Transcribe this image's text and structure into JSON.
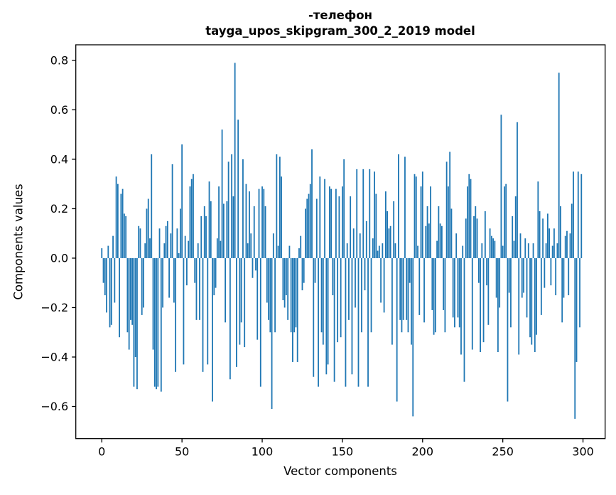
{
  "figure": {
    "title_line1": "-телефон",
    "title_line2": "tayga_upos_skipgram_300_2_2019 model",
    "xlabel": "Vector components",
    "ylabel": "Components values"
  },
  "chart_data": {
    "type": "bar",
    "title": "-телефон\ntayga_upos_skipgram_300_2_2019 model",
    "xlabel": "Vector components",
    "ylabel": "Components values",
    "legend": null,
    "grid": false,
    "bar_color": "#1f77b4",
    "bar_width": 0.8,
    "x_start": 0,
    "xlim": [
      -16.2,
      313.8
    ],
    "ylim": [
      -0.73,
      0.863
    ],
    "xticks": [
      0,
      50,
      100,
      150,
      200,
      250,
      300
    ],
    "yticks": [
      {
        "v": -0.6,
        "label": "−0.6"
      },
      {
        "v": -0.4,
        "label": "−0.4"
      },
      {
        "v": -0.2,
        "label": "−0.2"
      },
      {
        "v": 0.0,
        "label": "0.0"
      },
      {
        "v": 0.2,
        "label": "0.2"
      },
      {
        "v": 0.4,
        "label": "0.4"
      },
      {
        "v": 0.6,
        "label": "0.6"
      },
      {
        "v": 0.8,
        "label": "0.8"
      }
    ],
    "values": [
      0.04,
      -0.1,
      -0.15,
      -0.22,
      0.05,
      -0.28,
      -0.27,
      0.09,
      -0.18,
      0.33,
      0.3,
      -0.32,
      0.26,
      0.28,
      0.18,
      0.17,
      -0.3,
      -0.37,
      -0.25,
      -0.27,
      -0.52,
      -0.4,
      -0.53,
      0.13,
      0.12,
      -0.23,
      -0.2,
      0.06,
      0.2,
      0.24,
      0.08,
      0.42,
      -0.37,
      -0.52,
      -0.53,
      -0.52,
      0.12,
      -0.54,
      -0.2,
      0.06,
      0.13,
      0.15,
      -0.16,
      0.1,
      0.38,
      -0.18,
      -0.46,
      0.12,
      0.02,
      0.2,
      0.46,
      -0.43,
      0.09,
      -0.11,
      0.07,
      0.29,
      0.32,
      0.34,
      -0.1,
      -0.25,
      0.06,
      -0.25,
      0.17,
      -0.46,
      0.21,
      0.17,
      -0.43,
      0.31,
      0.23,
      -0.58,
      -0.15,
      -0.12,
      0.08,
      0.29,
      0.07,
      0.52,
      0.22,
      -0.26,
      0.23,
      0.39,
      -0.49,
      0.42,
      0.25,
      0.79,
      -0.44,
      0.56,
      -0.35,
      -0.26,
      0.4,
      -0.36,
      0.3,
      0.06,
      0.27,
      0.1,
      -0.08,
      0.21,
      -0.05,
      -0.33,
      0.28,
      -0.52,
      0.29,
      0.28,
      0.21,
      -0.18,
      -0.25,
      -0.3,
      -0.61,
      0.1,
      -0.3,
      0.42,
      0.05,
      0.41,
      0.33,
      -0.17,
      -0.2,
      -0.15,
      -0.25,
      0.05,
      -0.3,
      -0.42,
      -0.3,
      -0.28,
      -0.42,
      0.04,
      0.09,
      -0.13,
      -0.1,
      0.2,
      0.24,
      0.26,
      0.3,
      0.44,
      -0.48,
      -0.1,
      0.24,
      -0.52,
      0.33,
      -0.3,
      -0.35,
      0.32,
      -0.47,
      -0.43,
      0.29,
      0.28,
      -0.15,
      -0.5,
      0.28,
      -0.34,
      0.25,
      -0.32,
      0.29,
      0.4,
      -0.52,
      0.06,
      -0.25,
      0.25,
      -0.47,
      0.12,
      -0.2,
      0.36,
      -0.52,
      0.1,
      -0.3,
      0.36,
      -0.13,
      0.15,
      -0.52,
      0.36,
      -0.3,
      0.08,
      0.35,
      0.26,
      0.03,
      0.05,
      -0.18,
      0.06,
      -0.22,
      0.27,
      0.19,
      0.12,
      0.13,
      -0.35,
      0.23,
      0.06,
      -0.58,
      0.42,
      -0.25,
      -0.3,
      -0.25,
      0.41,
      -0.25,
      -0.3,
      -0.1,
      -0.35,
      -0.64,
      0.34,
      0.33,
      0.05,
      -0.23,
      0.29,
      0.35,
      -0.26,
      0.13,
      0.21,
      0.14,
      0.29,
      -0.21,
      -0.31,
      -0.3,
      0.07,
      0.21,
      0.14,
      0.13,
      -0.21,
      -0.3,
      0.39,
      0.29,
      0.43,
      0.2,
      -0.24,
      -0.28,
      0.1,
      -0.24,
      -0.28,
      -0.39,
      0.05,
      -0.5,
      0.16,
      0.29,
      0.34,
      0.32,
      -0.37,
      0.17,
      0.21,
      0.16,
      -0.1,
      -0.38,
      0.06,
      -0.34,
      0.19,
      -0.11,
      -0.27,
      0.12,
      0.09,
      0.08,
      0.07,
      -0.16,
      -0.38,
      -0.2,
      0.58,
      0.05,
      0.29,
      0.3,
      -0.58,
      -0.14,
      -0.28,
      0.17,
      0.07,
      0.25,
      0.55,
      -0.39,
      0.1,
      -0.16,
      -0.14,
      0.08,
      -0.24,
      0.06,
      -0.32,
      -0.35,
      0.06,
      -0.38,
      -0.31,
      0.31,
      0.19,
      -0.23,
      0.16,
      -0.12,
      0.06,
      0.18,
      0.12,
      -0.11,
      0.05,
      0.12,
      -0.15,
      0.06,
      0.75,
      0.21,
      -0.26,
      -0.16,
      0.09,
      0.11,
      -0.15,
      0.1,
      0.22,
      0.35,
      -0.65,
      -0.42,
      0.35,
      -0.28,
      0.34
    ]
  },
  "layout_hints": {
    "plot_area_color": "#ffffff",
    "spine_color": "#000000",
    "text_color": "#000000"
  }
}
